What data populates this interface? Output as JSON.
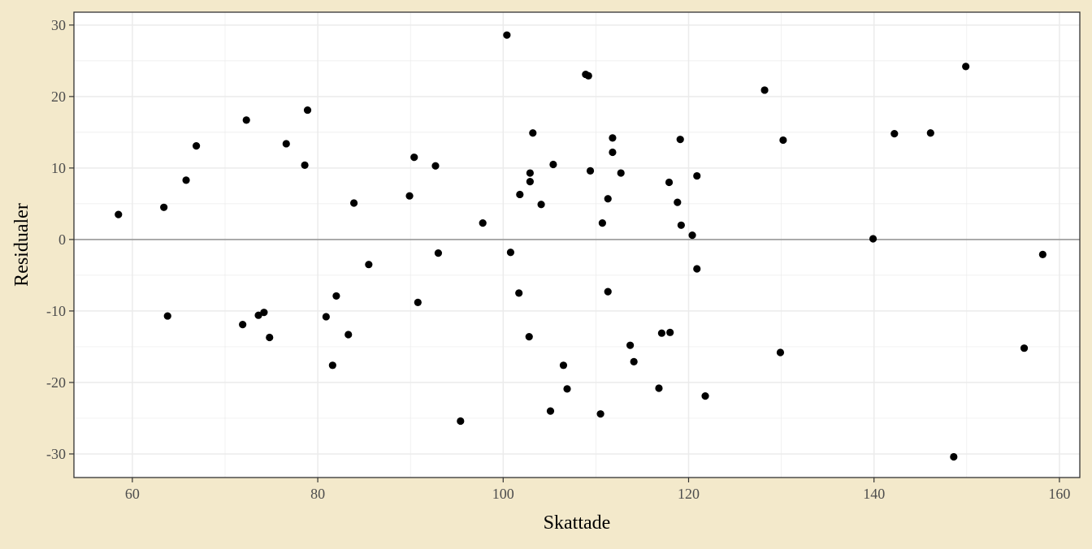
{
  "chart_data": {
    "type": "scatter",
    "title": "",
    "xlabel": "Skattade",
    "ylabel": "Residualer",
    "xlim": [
      53.7,
      162.2
    ],
    "ylim": [
      -33.3,
      31.8
    ],
    "xticks": [
      60,
      80,
      100,
      120,
      140,
      160
    ],
    "yticks": [
      -30,
      -20,
      -10,
      0,
      10,
      20,
      30
    ],
    "xtick_labels": [
      "60",
      "80",
      "100",
      "120",
      "140",
      "160"
    ],
    "ytick_labels": [
      "-30",
      "-20",
      "-10",
      "0",
      "10",
      "20",
      "30"
    ],
    "grid": true,
    "reference_line_y": 0,
    "colors": {
      "background": "#f3e9cb",
      "panel": "#ffffff",
      "grid": "#ebebeb",
      "reference_line": "#999999",
      "points": "#000000"
    },
    "points": [
      {
        "x": 58.5,
        "y": 3.5
      },
      {
        "x": 63.4,
        "y": 4.5
      },
      {
        "x": 63.8,
        "y": -10.7
      },
      {
        "x": 65.8,
        "y": 8.3
      },
      {
        "x": 66.9,
        "y": 13.1
      },
      {
        "x": 71.9,
        "y": -11.9
      },
      {
        "x": 72.3,
        "y": 16.7
      },
      {
        "x": 73.6,
        "y": -10.6
      },
      {
        "x": 74.2,
        "y": -10.2
      },
      {
        "x": 74.8,
        "y": -13.7
      },
      {
        "x": 76.6,
        "y": 13.4
      },
      {
        "x": 78.6,
        "y": 10.4
      },
      {
        "x": 78.9,
        "y": 18.1
      },
      {
        "x": 80.9,
        "y": -10.8
      },
      {
        "x": 81.6,
        "y": -17.6
      },
      {
        "x": 82.0,
        "y": -7.9
      },
      {
        "x": 83.3,
        "y": -13.3
      },
      {
        "x": 83.9,
        "y": 5.1
      },
      {
        "x": 85.5,
        "y": -3.5
      },
      {
        "x": 89.9,
        "y": 6.1
      },
      {
        "x": 90.4,
        "y": 11.5
      },
      {
        "x": 90.8,
        "y": -8.8
      },
      {
        "x": 92.7,
        "y": 10.3
      },
      {
        "x": 93.0,
        "y": -1.9
      },
      {
        "x": 95.4,
        "y": -25.4
      },
      {
        "x": 97.8,
        "y": 2.3
      },
      {
        "x": 100.4,
        "y": 28.6
      },
      {
        "x": 100.8,
        "y": -1.8
      },
      {
        "x": 101.7,
        "y": -7.5
      },
      {
        "x": 101.8,
        "y": 6.3
      },
      {
        "x": 102.8,
        "y": -13.6
      },
      {
        "x": 102.9,
        "y": 9.3
      },
      {
        "x": 102.9,
        "y": 8.1
      },
      {
        "x": 103.2,
        "y": 14.9
      },
      {
        "x": 104.1,
        "y": 4.9
      },
      {
        "x": 105.1,
        "y": -24.0
      },
      {
        "x": 105.4,
        "y": 10.5
      },
      {
        "x": 106.5,
        "y": -17.6
      },
      {
        "x": 106.9,
        "y": -20.9
      },
      {
        "x": 108.9,
        "y": 23.1
      },
      {
        "x": 109.2,
        "y": 22.9
      },
      {
        "x": 109.4,
        "y": 9.6
      },
      {
        "x": 110.5,
        "y": -24.4
      },
      {
        "x": 110.7,
        "y": 2.3
      },
      {
        "x": 111.3,
        "y": 5.7
      },
      {
        "x": 111.3,
        "y": -7.3
      },
      {
        "x": 111.8,
        "y": 14.2
      },
      {
        "x": 111.8,
        "y": 12.2
      },
      {
        "x": 112.7,
        "y": 9.3
      },
      {
        "x": 113.7,
        "y": -14.8
      },
      {
        "x": 114.1,
        "y": -17.1
      },
      {
        "x": 116.8,
        "y": -20.8
      },
      {
        "x": 117.1,
        "y": -13.1
      },
      {
        "x": 117.9,
        "y": 8.0
      },
      {
        "x": 118.0,
        "y": -13.0
      },
      {
        "x": 118.8,
        "y": 5.2
      },
      {
        "x": 119.1,
        "y": 14.0
      },
      {
        "x": 119.2,
        "y": 2.0
      },
      {
        "x": 120.4,
        "y": 0.6
      },
      {
        "x": 120.9,
        "y": 8.9
      },
      {
        "x": 120.9,
        "y": -4.1
      },
      {
        "x": 121.8,
        "y": -21.9
      },
      {
        "x": 128.2,
        "y": 20.9
      },
      {
        "x": 129.9,
        "y": -15.8
      },
      {
        "x": 130.2,
        "y": 13.9
      },
      {
        "x": 139.9,
        "y": 0.1
      },
      {
        "x": 142.2,
        "y": 14.8
      },
      {
        "x": 146.1,
        "y": 14.9
      },
      {
        "x": 148.6,
        "y": -30.4
      },
      {
        "x": 149.9,
        "y": 24.2
      },
      {
        "x": 156.2,
        "y": -15.2
      },
      {
        "x": 158.2,
        "y": -2.1
      }
    ]
  }
}
